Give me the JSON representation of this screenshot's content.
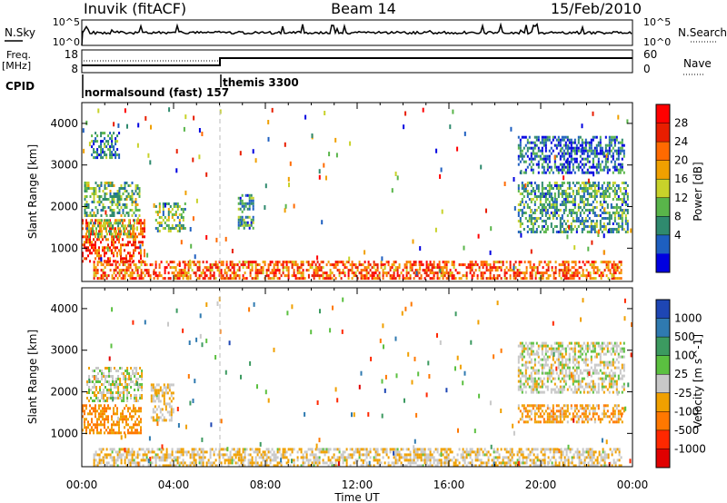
{
  "header": {
    "station": "Inuvik (fitACF)",
    "beam": "Beam 14",
    "date": "15/Feb/2010"
  },
  "top_panels": {
    "nsky_label": "N.Sky",
    "nsky_ticks": [
      "10^5",
      "10^0"
    ],
    "nsearch_label": "N.Search",
    "nsearch_ticks": [
      "10^5",
      "10^0"
    ],
    "freq_label": "Freq.",
    "freq_unit": "[MHz]",
    "freq_ticks": [
      "18",
      "8"
    ],
    "nave_label": "Nave",
    "nave_ticks": [
      "60",
      "0"
    ],
    "cpid_label": "CPID",
    "cpid_segments": [
      "normalsound (fast) 157",
      "themis 3300"
    ]
  },
  "chart_data": [
    {
      "type": "heatmap",
      "name": "power",
      "ylabel": "Slant Range [km]",
      "yticks": [
        1000,
        2000,
        3000,
        4000
      ],
      "ylim": [
        200,
        4500
      ],
      "xlim": [
        0,
        24
      ],
      "colorbar_label": "Power [dB]",
      "colorbar_ticks": [
        "28",
        "24",
        "20",
        "16",
        "12",
        "8",
        "4"
      ],
      "colors": [
        "#0000e0",
        "#1e5fc0",
        "#2f8a6e",
        "#59b54a",
        "#c8d22a",
        "#f0a000",
        "#ff6a00",
        "#e81e00",
        "#ff0000"
      ],
      "regions": [
        {
          "t0": 0.0,
          "t1": 2.7,
          "r0": 700,
          "r1": 1700,
          "v": 26
        },
        {
          "t0": 0.2,
          "t1": 2.3,
          "r0": 1250,
          "r1": 1700,
          "v": 14
        },
        {
          "t0": 0.1,
          "t1": 2.5,
          "r0": 1800,
          "r1": 2600,
          "v": 12
        },
        {
          "t0": 0.4,
          "t1": 1.6,
          "r0": 3200,
          "r1": 3800,
          "v": 8
        },
        {
          "t0": 0.5,
          "t1": 23.5,
          "r0": 250,
          "r1": 700,
          "v": 24
        },
        {
          "t0": 3.2,
          "t1": 4.5,
          "r0": 1400,
          "r1": 2100,
          "v": 12
        },
        {
          "t0": 6.8,
          "t1": 7.5,
          "r0": 1500,
          "r1": 2300,
          "v": 10
        },
        {
          "t0": 19.0,
          "t1": 23.8,
          "r0": 1400,
          "r1": 2600,
          "v": 10
        },
        {
          "t0": 19.0,
          "t1": 23.6,
          "r0": 2800,
          "r1": 3700,
          "v": 6
        }
      ]
    },
    {
      "type": "heatmap",
      "name": "velocity",
      "ylabel": "Slant Range [km]",
      "xlabel": "Time UT",
      "xticks": [
        "00:00",
        "04:00",
        "08:00",
        "12:00",
        "16:00",
        "20:00",
        "00:00"
      ],
      "yticks": [
        1000,
        2000,
        3000,
        4000
      ],
      "ylim": [
        200,
        4500
      ],
      "xlim": [
        0,
        24
      ],
      "colorbar_label": "Velocity [m s^-1]",
      "colorbar_ticks": [
        "1000",
        "500",
        "100",
        "25",
        "-25",
        "-100",
        "-500",
        "-1000"
      ],
      "colors": [
        "#1e46b4",
        "#2f7ab0",
        "#3c9a60",
        "#5bc040",
        "#c8c8c8",
        "#f0a000",
        "#ff7800",
        "#ff2800",
        "#e00000"
      ],
      "regions": [
        {
          "t0": 0.0,
          "t1": 2.6,
          "r0": 1000,
          "r1": 1700,
          "v": -400
        },
        {
          "t0": 0.2,
          "t1": 2.6,
          "r0": 1800,
          "r1": 2600,
          "v": 0
        },
        {
          "t0": 0.5,
          "t1": 23.5,
          "r0": 250,
          "r1": 650,
          "v": -100
        },
        {
          "t0": 19.0,
          "t1": 23.6,
          "r0": 1300,
          "r1": 1700,
          "v": -300
        },
        {
          "t0": 19.0,
          "t1": 23.6,
          "r0": 2000,
          "r1": 3200,
          "v": 0
        },
        {
          "t0": 3.0,
          "t1": 4.0,
          "r0": 1300,
          "r1": 2200,
          "v": -100
        }
      ]
    }
  ]
}
